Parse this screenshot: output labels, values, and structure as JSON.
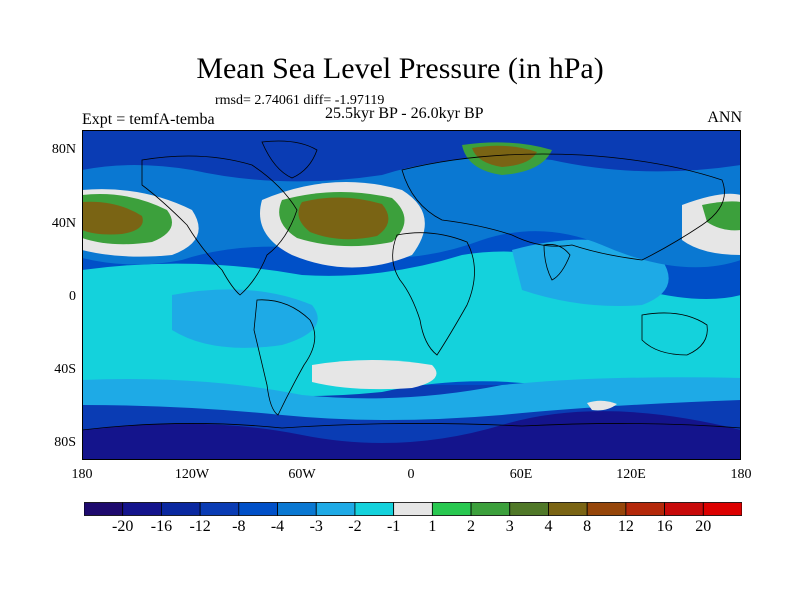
{
  "title": "Mean Sea Level Pressure (in hPa)",
  "stats": "rmsd= 2.74061 diff= -1.97119",
  "experiment": "Expt = temfA-temba",
  "period": "25.5kyr BP - 26.0kyr BP",
  "season": "ANN",
  "lat_ticks": [
    "80N",
    "40N",
    "0",
    "40S",
    "80S"
  ],
  "lon_ticks": [
    "180",
    "120W",
    "60W",
    "0",
    "60E",
    "120E",
    "180"
  ],
  "colorbar": {
    "labels": [
      "-20",
      "-16",
      "-12",
      "-8",
      "-4",
      "-3",
      "-2",
      "-1",
      "1",
      "2",
      "3",
      "4",
      "8",
      "12",
      "16",
      "20"
    ],
    "colors": [
      "#1e0a6e",
      "#14148c",
      "#0a28a0",
      "#0a3cb4",
      "#0050c8",
      "#0a78d2",
      "#1eaae6",
      "#14d2dc",
      "#e6e6e6",
      "#28c850",
      "#3ca03c",
      "#507828",
      "#7a6414",
      "#96460a",
      "#b4280a",
      "#c80a0a",
      "#dc0000"
    ]
  },
  "colors": {
    "ocean_deep": "#0a3cb4",
    "ocean_mid": "#0050c8",
    "ocean_light": "#0a78d2",
    "sky": "#1eaae6",
    "cyan": "#14d2dc",
    "neutral": "#e6e6e6",
    "green": "#3ca03c",
    "olive": "#507828",
    "brown": "#7a6414",
    "dark_blue": "#14148c"
  }
}
